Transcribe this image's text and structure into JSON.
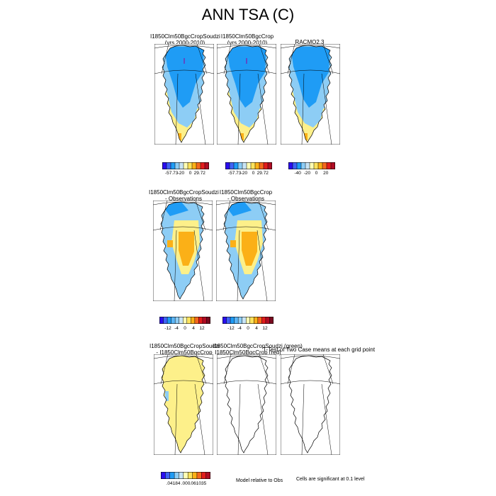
{
  "title": "ANN TSA (C)",
  "panels": [
    {
      "t1": "I1850Clm50BgcCropSoudzi",
      "t2": "(yrs 2000-2010)",
      "kind": "abs"
    },
    {
      "t1": "I1850Clm50BgcCrop",
      "t2": "(yrs 2000-2010)",
      "kind": "abs"
    },
    {
      "t1": "RACMO2.3",
      "t2": "",
      "kind": "abs"
    },
    {
      "t1": "I1850Clm50BgcCropSoudzi",
      "t2": "- Observations",
      "kind": "bias"
    },
    {
      "t1": "I1850Clm50BgcCrop",
      "t2": "- Observations",
      "kind": "bias"
    },
    {
      "t1": "I1850Clm50BgcCropSoudzi",
      "t2": "- I1850Clm50BgcCrop",
      "kind": "diff"
    },
    {
      "t1": "I1850Clm50BgcCropSoudzi (green)",
      "t2": "I1850Clm50BgcCrop (red)",
      "kind": "empty"
    },
    {
      "t1": "T-Test of Two Case means at each grid point",
      "t2": "",
      "kind": "empty"
    }
  ],
  "colorbars": [
    {
      "labels": [
        "-57.73",
        "-20",
        "0",
        "29.72"
      ],
      "colors": [
        "#2b0df0",
        "#3f63f5",
        "#1f9cf5",
        "#8dcdf5",
        "#c8e4f5",
        "#fdfdb5",
        "#fde35c",
        "#fbb017",
        "#f5681d",
        "#e21c1c",
        "#b00c24"
      ]
    },
    {
      "labels": [
        "-57.73",
        "-20",
        "0",
        "29.72"
      ],
      "colors": [
        "#2b0df0",
        "#3f63f5",
        "#1f9cf5",
        "#8dcdf5",
        "#c8e4f5",
        "#fdfdb5",
        "#fde35c",
        "#fbb017",
        "#f5681d",
        "#e21c1c",
        "#b00c24"
      ]
    },
    {
      "labels": [
        "-40",
        "-20",
        "0",
        "20"
      ],
      "colors": [
        "#2b0df0",
        "#3f63f5",
        "#1f9cf5",
        "#8dcdf5",
        "#c8e4f5",
        "#fdfdb5",
        "#fde35c",
        "#fbb017",
        "#f5681d",
        "#e21c1c",
        "#b00c24"
      ]
    },
    {
      "labels": [
        "-12",
        "-4",
        "0",
        "4",
        "12"
      ],
      "colors": [
        "#2b0df0",
        "#3f63f5",
        "#1f9cf5",
        "#5cb5f5",
        "#8dcdf5",
        "#c8e4f5",
        "#fdfdb5",
        "#fde35c",
        "#fbb017",
        "#f5681d",
        "#e21c1c",
        "#b00c24",
        "#7a0a20"
      ]
    },
    {
      "labels": [
        "-12",
        "-4",
        "0",
        "4",
        "12"
      ],
      "colors": [
        "#2b0df0",
        "#3f63f5",
        "#1f9cf5",
        "#5cb5f5",
        "#8dcdf5",
        "#c8e4f5",
        "#fdfdb5",
        "#fde35c",
        "#fbb017",
        "#f5681d",
        "#e21c1c",
        "#b00c24",
        "#7a0a20"
      ]
    },
    {
      "labels": [
        ".04184",
        ".000",
        ".061035"
      ],
      "colors": [
        "#2b0df0",
        "#3f63f5",
        "#1f9cf5",
        "#8dcdf5",
        "#c8e4f5",
        "#fdfdb5",
        "#fde35c",
        "#fbb017",
        "#f5681d",
        "#e21c1c",
        "#b00c24"
      ]
    }
  ],
  "notes": {
    "model_relative": "Model relative to Obs",
    "significance": "Cells are significant at 0.1 level"
  },
  "map_colors": {
    "deep_blue": "#1f9cf5",
    "light_blue": "#8dcdf5",
    "pale_yellow": "#fdf08a",
    "orange": "#fbb017",
    "red_orange": "#f5681d",
    "purple": "#5c4cc8"
  }
}
